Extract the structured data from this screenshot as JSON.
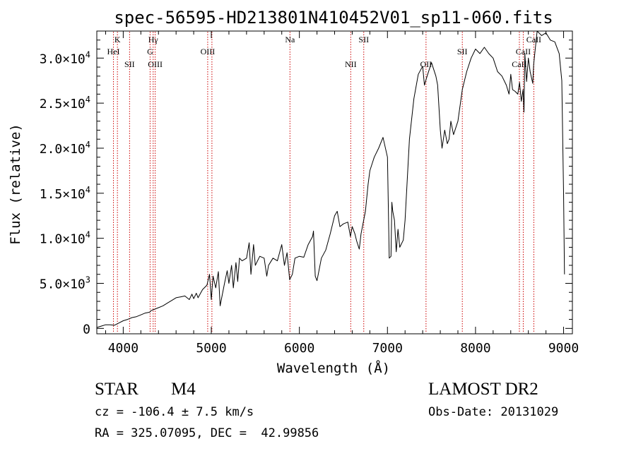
{
  "chart_data": {
    "type": "line",
    "title": "spec-56595-HD213801N410452V01_sp11-060.fits",
    "xlabel": "Wavelength (Å)",
    "ylabel": "Flux (relative)",
    "xlim": [
      3700,
      9100
    ],
    "ylim": [
      -600,
      33000
    ],
    "x_ticks": [
      {
        "value": 4000,
        "label": "4000"
      },
      {
        "value": 5000,
        "label": "5000"
      },
      {
        "value": 6000,
        "label": "6000"
      },
      {
        "value": 7000,
        "label": "7000"
      },
      {
        "value": 8000,
        "label": "8000"
      },
      {
        "value": 9000,
        "label": "9000"
      }
    ],
    "y_ticks": [
      {
        "value": 0,
        "mant": "0",
        "exp": ""
      },
      {
        "value": 5000,
        "mant": "5.0×10",
        "exp": "3"
      },
      {
        "value": 10000,
        "mant": "1.0×10",
        "exp": "4"
      },
      {
        "value": 15000,
        "mant": "1.5×10",
        "exp": "4"
      },
      {
        "value": 20000,
        "mant": "2.0×10",
        "exp": "4"
      },
      {
        "value": 25000,
        "mant": "2.5×10",
        "exp": "4"
      },
      {
        "value": 30000,
        "mant": "3.0×10",
        "exp": "4"
      }
    ],
    "series": [
      {
        "color": "#000000",
        "x": [
          3700,
          3750,
          3800,
          3850,
          3900,
          3950,
          4000,
          4050,
          4100,
          4150,
          4200,
          4250,
          4300,
          4320,
          4350,
          4400,
          4450,
          4500,
          4550,
          4600,
          4650,
          4700,
          4750,
          4780,
          4800,
          4830,
          4850,
          4900,
          4950,
          4980,
          5000,
          5020,
          5050,
          5080,
          5100,
          5150,
          5180,
          5200,
          5230,
          5250,
          5280,
          5300,
          5320,
          5350,
          5400,
          5430,
          5450,
          5480,
          5500,
          5550,
          5600,
          5630,
          5650,
          5700,
          5750,
          5800,
          5830,
          5860,
          5890,
          5920,
          5950,
          6000,
          6050,
          6100,
          6150,
          6160,
          6180,
          6200,
          6250,
          6300,
          6350,
          6400,
          6430,
          6460,
          6500,
          6550,
          6580,
          6600,
          6630,
          6650,
          6680,
          6700,
          6750,
          6780,
          6800,
          6830,
          6850,
          6900,
          6950,
          7000,
          7020,
          7040,
          7050,
          7060,
          7080,
          7100,
          7120,
          7140,
          7180,
          7200,
          7250,
          7300,
          7350,
          7400,
          7420,
          7450,
          7500,
          7550,
          7570,
          7600,
          7620,
          7650,
          7680,
          7700,
          7720,
          7750,
          7800,
          7850,
          7900,
          7950,
          8000,
          8050,
          8100,
          8150,
          8200,
          8250,
          8300,
          8350,
          8380,
          8400,
          8420,
          8450,
          8480,
          8500,
          8520,
          8540,
          8550,
          8560,
          8580,
          8600,
          8620,
          8650,
          8660,
          8680,
          8700,
          8750,
          8800,
          8850,
          8900,
          8950,
          8980,
          9000,
          9010
        ],
        "y": [
          100,
          250,
          400,
          400,
          350,
          600,
          850,
          1000,
          1200,
          1300,
          1500,
          1700,
          1800,
          2000,
          2100,
          2300,
          2500,
          2800,
          3100,
          3400,
          3500,
          3600,
          3200,
          3800,
          3300,
          3900,
          3400,
          4300,
          4800,
          6000,
          3200,
          5800,
          4500,
          6300,
          2500,
          5000,
          6400,
          5000,
          7000,
          4500,
          7300,
          5200,
          7800,
          7500,
          7800,
          9500,
          6000,
          9300,
          7000,
          8000,
          7800,
          5800,
          7000,
          7800,
          7500,
          9300,
          7000,
          8400,
          5400,
          6000,
          7800,
          8000,
          7900,
          9300,
          10200,
          10800,
          5800,
          5300,
          7800,
          8700,
          10500,
          12500,
          13000,
          11300,
          11600,
          11800,
          10200,
          11300,
          10500,
          9700,
          8800,
          10500,
          13000,
          16000,
          17500,
          18400,
          19000,
          20000,
          21200,
          19000,
          7800,
          8000,
          14000,
          13000,
          12000,
          8500,
          11000,
          9000,
          9800,
          12000,
          21000,
          25500,
          28200,
          29100,
          27000,
          28000,
          29500,
          28000,
          27000,
          22000,
          20000,
          22000,
          20500,
          21000,
          23000,
          21500,
          23000,
          26500,
          28500,
          30000,
          31000,
          30500,
          31200,
          30500,
          30000,
          28500,
          28000,
          27000,
          26000,
          28200,
          26500,
          26300,
          26000,
          27300,
          25200,
          26500,
          24000,
          30500,
          27400,
          30000,
          28500,
          27200,
          29300,
          31200,
          33000,
          32500,
          32800,
          32000,
          31800,
          30500,
          27500,
          15000,
          6000
        ]
      }
    ],
    "line_color": "#cc0000",
    "lines": [
      {
        "x": 3934,
        "label": "K",
        "row": 1
      },
      {
        "x": 3889,
        "label": "HeI",
        "row": 2
      },
      {
        "x": 4072,
        "label": "SII",
        "row": 3
      },
      {
        "x": 4340,
        "label": "Hγ",
        "row": 1
      },
      {
        "x": 4305,
        "label": "G",
        "row": 2
      },
      {
        "x": 4363,
        "label": "OIII",
        "row": 3
      },
      {
        "x": 4959,
        "label": "OIII",
        "row": 2
      },
      {
        "x": 5007,
        "label": "",
        "row": 0
      },
      {
        "x": 5893,
        "label": "Na",
        "row": 1
      },
      {
        "x": 6583,
        "label": "NII",
        "row": 3
      },
      {
        "x": 6731,
        "label": "SII",
        "row": 1
      },
      {
        "x": 7438,
        "label": "OII",
        "row": 3
      },
      {
        "x": 7850,
        "label": "SII",
        "row": 2
      },
      {
        "x": 8498,
        "label": "CaII",
        "row": 3
      },
      {
        "x": 8542,
        "label": "CaII",
        "row": 2
      },
      {
        "x": 8662,
        "label": "CaII",
        "row": 1
      }
    ]
  },
  "footer": {
    "class_label": "STAR",
    "subclass": "M4",
    "survey": "LAMOST DR2",
    "cz": "cz = -106.4 ± 7.5 km/s",
    "obs_date": "Obs-Date: 20131029",
    "coords": "RA = 325.07095, DEC =  42.99856"
  }
}
